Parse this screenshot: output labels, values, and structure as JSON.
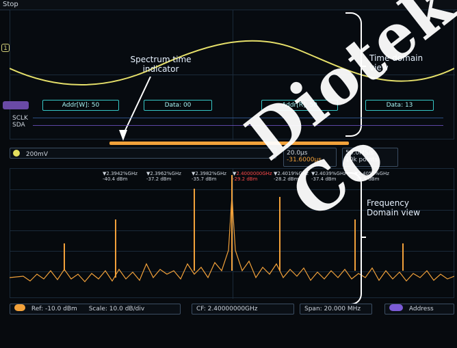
{
  "top": {
    "status": "Stop"
  },
  "time_view": {
    "annotation_spectrum_time_line1": "Spectrum time",
    "annotation_spectrum_time_line2": "indicator",
    "annotation_time_domain_line1": "Time domain",
    "annotation_time_domain_line2": "view",
    "bus": {
      "segments": [
        {
          "label": "Addr[W]: 50"
        },
        {
          "label": "Data: 00"
        },
        {
          "label": "Addr[R]: 50"
        },
        {
          "label": "Data: 13"
        }
      ],
      "signals": [
        "SCLK",
        "SDA"
      ]
    },
    "readouts": {
      "channel_scale": "200mV",
      "timebase": "20.0µs",
      "trigger_pos": "-31.6000µs",
      "sample_rate": "50.0MS/s",
      "record_length": "10k points"
    }
  },
  "freq_view": {
    "annotation_freq_line1": "Frequency",
    "annotation_freq_line2": "Domain view",
    "peak_markers": [
      {
        "freq": "2.3942%GHz",
        "level": "-40.4 dBm"
      },
      {
        "freq": "2.3962%GHz",
        "level": "-37.2 dBm"
      },
      {
        "freq": "2.3982%GHz",
        "level": "-35.7 dBm"
      },
      {
        "freq": "2.4000000GHz",
        "level": "-29.2 dBm",
        "highlight": true
      },
      {
        "freq": "2.4019%GHz",
        "level": "-28.2 dBm"
      },
      {
        "freq": "2.4039%GHz",
        "level": "-37.4 dBm"
      },
      {
        "freq": "2.4057%GHz",
        "level": "-37.5 dBm"
      }
    ]
  },
  "bottom_bar": {
    "ref": "Ref: -10.0 dBm",
    "scale": "Scale: 10.0 dB/div",
    "cf": "CF: 2.40000000GHz",
    "span": "Span: 20.000 MHz",
    "address": "Address"
  },
  "watermark": "Diotek Co"
}
